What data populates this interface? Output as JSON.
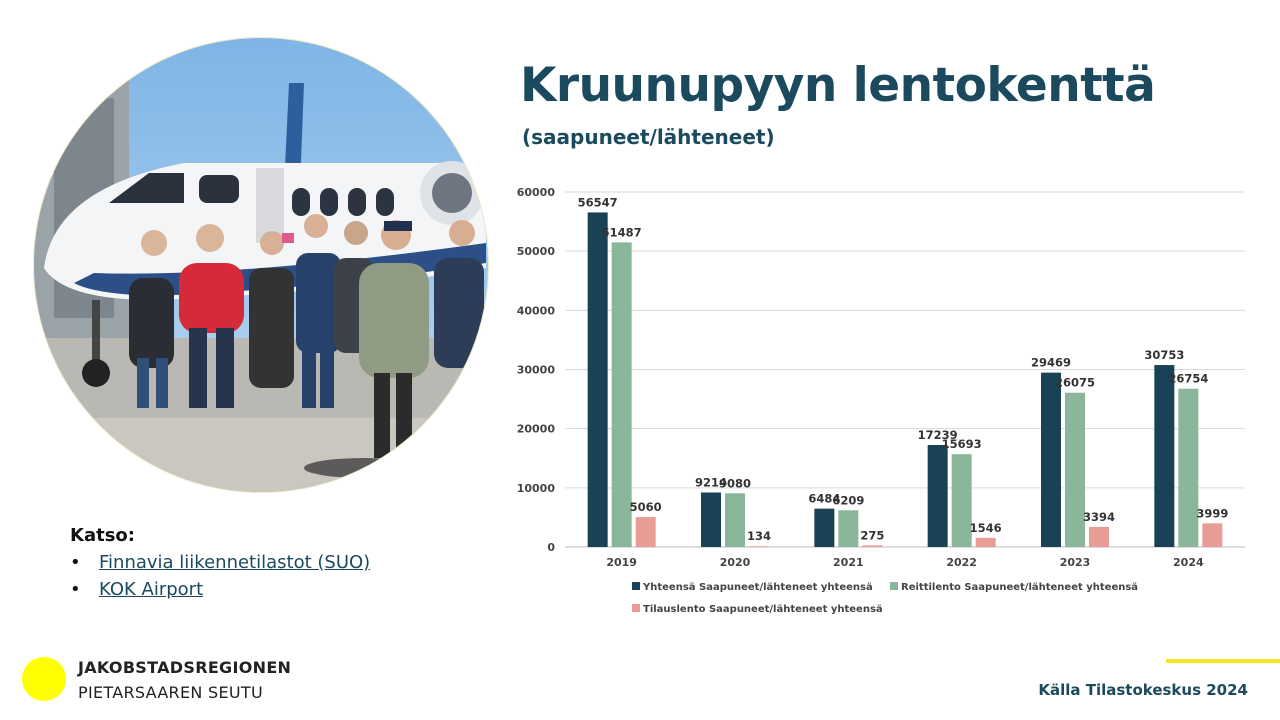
{
  "title": "Kruunupyyn lentokenttä",
  "subtitle": "(saapuneet/lähteneet)",
  "katso": {
    "heading": "Katso:",
    "links": [
      "Finnavia liikennetilastot (SUO)",
      "KOK Airport"
    ]
  },
  "logo": {
    "line1": "JAKOBSTADSREGIONEN",
    "line2": "PIETARSAAREN SEUTU",
    "dot_color": "#ffff00"
  },
  "source": "Källa Tilastokeskus 2024",
  "chart_data": {
    "type": "bar",
    "categories": [
      "2019",
      "2020",
      "2021",
      "2022",
      "2023",
      "2024"
    ],
    "series": [
      {
        "name": "Yhteensä Saapuneet/lähteneet yhteensä",
        "color": "#1a4257",
        "values": [
          56547,
          9214,
          6484,
          17239,
          29469,
          30753
        ]
      },
      {
        "name": "Reittilento Saapuneet/lähteneet yhteensä",
        "color": "#8ab69a",
        "values": [
          51487,
          9080,
          6209,
          15693,
          26075,
          26754
        ]
      },
      {
        "name": "Tilauslento Saapuneet/lähteneet yhteensä",
        "color": "#e89c95",
        "values": [
          5060,
          134,
          275,
          1546,
          3394,
          3999
        ]
      }
    ],
    "ylim": [
      0,
      60000
    ],
    "yticks": [
      0,
      10000,
      20000,
      30000,
      40000,
      50000,
      60000
    ],
    "grid": true,
    "legend_position": "bottom",
    "data_labels": true
  }
}
